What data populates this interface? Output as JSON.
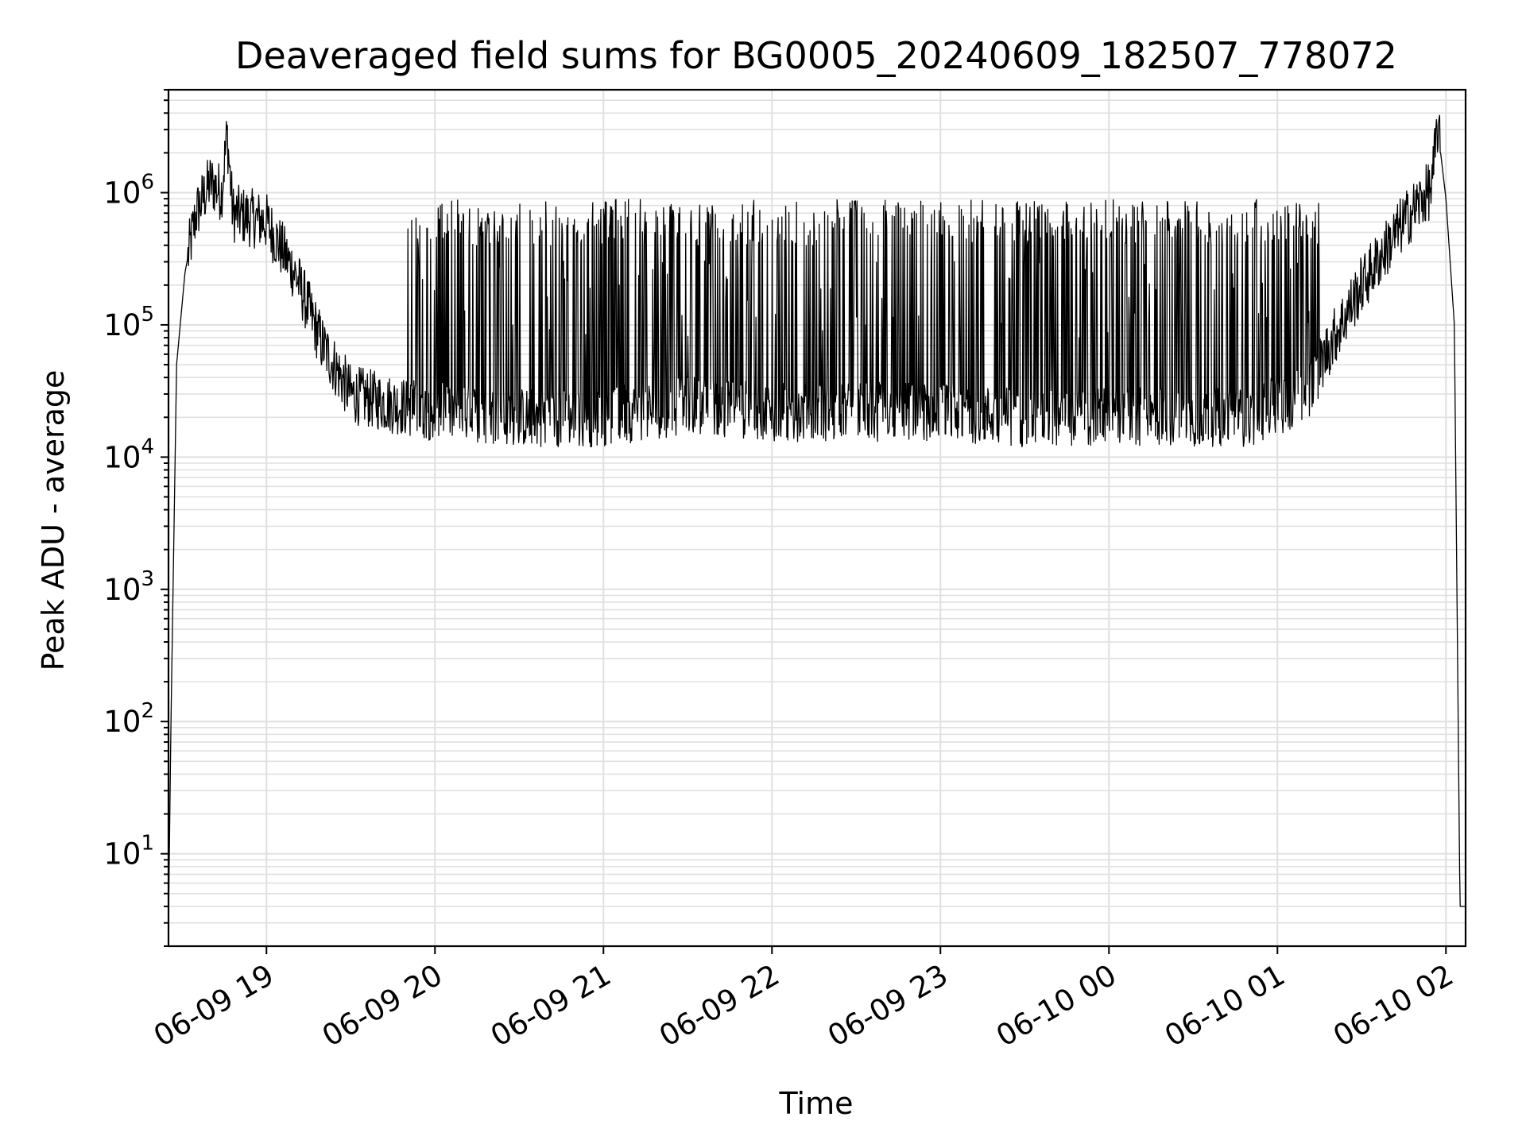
{
  "chart_data": {
    "type": "line",
    "title": "Deaveraged field sums for BG0005_20240609_182507_778072",
    "xlabel": "Time",
    "ylabel": "Peak ADU - average",
    "yscale": "log",
    "ylim": [
      2,
      6000000
    ],
    "xlim": [
      "2024-06-09 18:25:07",
      "2024-06-10 02:07:00"
    ],
    "grid": true,
    "line_color": "#000000",
    "grid_color": "#e0e0e0",
    "x_ticks": [
      {
        "label": "06-09 19",
        "time": "2024-06-09 19:00"
      },
      {
        "label": "06-09 20",
        "time": "2024-06-09 20:00"
      },
      {
        "label": "06-09 21",
        "time": "2024-06-09 21:00"
      },
      {
        "label": "06-09 22",
        "time": "2024-06-09 22:00"
      },
      {
        "label": "06-09 23",
        "time": "2024-06-09 23:00"
      },
      {
        "label": "06-10 00",
        "time": "2024-06-10 00:00"
      },
      {
        "label": "06-10 01",
        "time": "2024-06-10 01:00"
      },
      {
        "label": "06-10 02",
        "time": "2024-06-10 02:00"
      }
    ],
    "y_ticks": [
      {
        "base": "10",
        "exp": "1",
        "value": 10
      },
      {
        "base": "10",
        "exp": "2",
        "value": 100
      },
      {
        "base": "10",
        "exp": "3",
        "value": 1000
      },
      {
        "base": "10",
        "exp": "4",
        "value": 10000
      },
      {
        "base": "10",
        "exp": "5",
        "value": 100000
      },
      {
        "base": "10",
        "exp": "6",
        "value": 1000000
      }
    ],
    "series": [
      {
        "points": [
          [
            "2024-06-09 18:25:07",
            3
          ],
          [
            "2024-06-09 18:26:00",
            100
          ],
          [
            "2024-06-09 18:28:00",
            50000
          ],
          [
            "2024-06-09 18:31:00",
            250000
          ],
          [
            "2024-06-09 18:35:00",
            700000
          ],
          [
            "2024-06-09 18:40:00",
            1200000
          ],
          [
            "2024-06-09 18:44:00",
            1000000
          ],
          [
            "2024-06-09 18:46:00",
            2800000
          ],
          [
            "2024-06-09 18:48:00",
            700000
          ],
          [
            "2024-06-09 19:00:00",
            600000
          ],
          [
            "2024-06-09 19:10:00",
            250000
          ],
          [
            "2024-06-09 19:20:00",
            70000
          ],
          [
            "2024-06-09 19:30:00",
            30000
          ],
          [
            "2024-06-09 19:45:00",
            25000
          ],
          [
            "2024-06-09 20:00:00",
            22000
          ],
          [
            "2024-06-09 20:30:00",
            20000
          ],
          [
            "2024-06-09 21:00:00",
            20000
          ],
          [
            "2024-06-09 21:30:00",
            25000
          ],
          [
            "2024-06-09 22:00:00",
            22000
          ],
          [
            "2024-06-09 22:30:00",
            22000
          ],
          [
            "2024-06-09 23:00:00",
            22000
          ],
          [
            "2024-06-09 23:30:00",
            20000
          ],
          [
            "2024-06-10 00:00:00",
            20000
          ],
          [
            "2024-06-10 00:30:00",
            20000
          ],
          [
            "2024-06-10 00:50:00",
            20000
          ],
          [
            "2024-06-10 01:10:00",
            30000
          ],
          [
            "2024-06-10 01:20:00",
            80000
          ],
          [
            "2024-06-10 01:30:00",
            200000
          ],
          [
            "2024-06-10 01:45:00",
            600000
          ],
          [
            "2024-06-10 01:55:00",
            1100000
          ],
          [
            "2024-06-10 01:57:00",
            3200000
          ],
          [
            "2024-06-10 02:00:00",
            900000
          ],
          [
            "2024-06-10 02:03:00",
            100000
          ],
          [
            "2024-06-10 02:05:00",
            4
          ],
          [
            "2024-06-10 02:07:00",
            4
          ]
        ]
      }
    ]
  }
}
